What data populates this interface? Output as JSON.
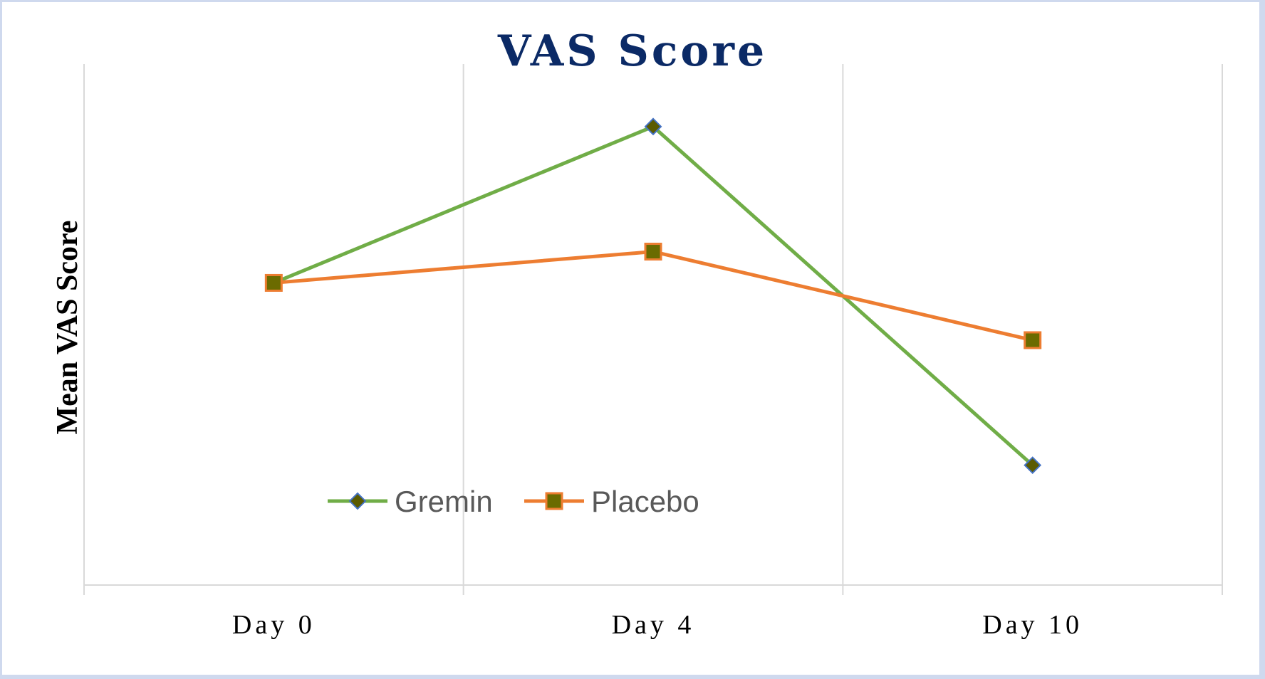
{
  "chart_data": {
    "type": "line",
    "title": "VAS Score",
    "xlabel": "",
    "ylabel": "Mean VAS Score",
    "categories": [
      "Day 0",
      "Day 4",
      "Day 10"
    ],
    "ylim": [
      0,
      10
    ],
    "y_axis_labels_shown": false,
    "grid": "vertical",
    "legend_position": "bottom-left inside",
    "series": [
      {
        "name": "Gremin",
        "values": [
          5.8,
          8.8,
          2.3
        ],
        "color": "#70ad47",
        "marker": "diamond",
        "marker_fill": "#5a5a00",
        "marker_edge": "#4472c4"
      },
      {
        "name": "Placebo",
        "values": [
          5.8,
          6.4,
          4.7
        ],
        "color": "#ed7d31",
        "marker": "square",
        "marker_fill": "#6b6b00",
        "marker_edge": "#ed7d31"
      }
    ]
  }
}
